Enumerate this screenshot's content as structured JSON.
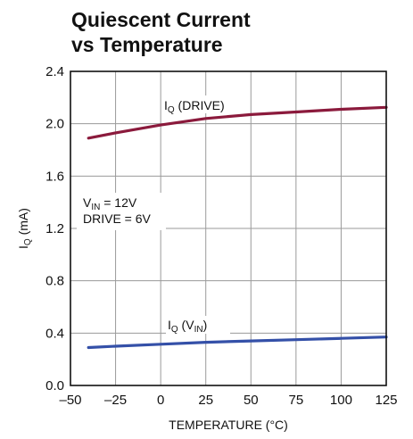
{
  "chart_data": {
    "type": "line",
    "title": [
      "Quiescent Current",
      "vs Temperature"
    ],
    "xlabel": "TEMPERATURE (°C)",
    "ylabel": {
      "main": "I",
      "sub": "Q",
      "rest": " (mA)"
    },
    "xlim": [
      -50,
      125
    ],
    "ylim": [
      0,
      2.4
    ],
    "x_ticks": [
      -50,
      -25,
      0,
      25,
      50,
      75,
      100,
      125
    ],
    "x_tick_labels": [
      "–50",
      "–25",
      "0",
      "25",
      "50",
      "75",
      "100",
      "125"
    ],
    "y_ticks": [
      0,
      0.4,
      0.8,
      1.2,
      1.6,
      2.0,
      2.4
    ],
    "y_tick_labels": [
      "0.0",
      "0.4",
      "0.8",
      "1.2",
      "1.6",
      "2.0",
      "2.4"
    ],
    "grid": true,
    "series": [
      {
        "label": {
          "main": "I",
          "sub": "Q",
          "rest": " (DRIVE)"
        },
        "color": "#8b1a3c",
        "x": [
          -40,
          -25,
          0,
          25,
          50,
          75,
          100,
          125
        ],
        "y": [
          1.89,
          1.93,
          1.99,
          2.04,
          2.07,
          2.09,
          2.11,
          2.125
        ]
      },
      {
        "label": {
          "main": "I",
          "sub": "Q",
          "rest": " (V",
          "sub2": "IN",
          "rest2": ")"
        },
        "color": "#3450a8",
        "x": [
          -40,
          -25,
          0,
          25,
          50,
          75,
          100,
          125
        ],
        "y": [
          0.29,
          0.3,
          0.315,
          0.33,
          0.34,
          0.35,
          0.36,
          0.37
        ]
      }
    ],
    "conditions": [
      {
        "main": "V",
        "sub": "IN",
        "rest": " = 12V"
      },
      {
        "main": "DRIVE = 6V"
      }
    ]
  }
}
